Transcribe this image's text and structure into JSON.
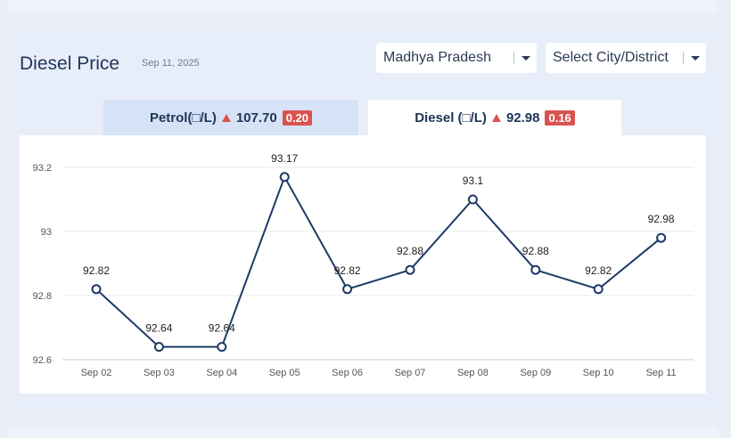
{
  "header": {
    "title": "Diesel Price",
    "date": "Sep 11, 2025"
  },
  "filters": {
    "state": "Madhya Pradesh",
    "city": "Select City/District"
  },
  "tabs": {
    "petrol": {
      "label": "Petrol(□/L)",
      "price": "107.70",
      "change": "0.20"
    },
    "diesel": {
      "label": "Diesel (□/L)",
      "price": "92.98",
      "change": "0.16"
    }
  },
  "colors": {
    "line": "#1f3a68",
    "change_up": "#d9534f",
    "tab_active": "#ffffff",
    "tab_inactive": "#d6e2f6"
  },
  "chart_data": {
    "type": "line",
    "categories": [
      "Sep 02",
      "Sep 03",
      "Sep 04",
      "Sep 05",
      "Sep 06",
      "Sep 07",
      "Sep 08",
      "Sep 09",
      "Sep 10",
      "Sep 11"
    ],
    "values": [
      92.82,
      92.64,
      92.64,
      93.17,
      92.82,
      92.88,
      93.1,
      92.88,
      92.82,
      92.98
    ],
    "value_labels": [
      "92.82",
      "92.64",
      "92.64",
      "93.17",
      "92.82",
      "92.88",
      "93.1",
      "92.88",
      "92.82",
      "92.98"
    ],
    "yticks": [
      92.6,
      92.8,
      93,
      93.2
    ],
    "ytick_labels": [
      "92.6",
      "92.8",
      "93",
      "93.2"
    ],
    "ylim": [
      92.6,
      93.2
    ],
    "grid": true,
    "legend": "none"
  }
}
